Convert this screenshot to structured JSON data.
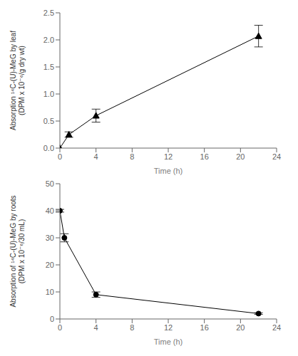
{
  "chart_data": [
    {
      "type": "line",
      "x": [
        0,
        1,
        4,
        22
      ],
      "values": [
        0,
        0.25,
        0.6,
        2.07
      ],
      "yerr": [
        0,
        0.05,
        0.12,
        0.2
      ],
      "marker": "triangle",
      "color": "#000000",
      "xlim": [
        0,
        24
      ],
      "ylim": [
        0,
        2.5
      ],
      "xticks": [
        0,
        4,
        8,
        12,
        16,
        20,
        24
      ],
      "yticks": [
        {
          "value": 0,
          "label": "0.0"
        },
        {
          "value": 0.5,
          "label": "0.5"
        },
        {
          "value": 1.0,
          "label": "1.0"
        },
        {
          "value": 1.5,
          "label": "1.5"
        },
        {
          "value": 2.0,
          "label": "2.0"
        },
        {
          "value": 2.5,
          "label": "2.5"
        }
      ],
      "xlabel": "Time (h)",
      "ylabel": "Absorption ¹⁴C-(U)-MeG by leaf\n(DPM x 10⁻⁶/g dry wt)",
      "grid": false
    },
    {
      "type": "line",
      "x": [
        0,
        0.5,
        4,
        22
      ],
      "values": [
        40,
        30,
        9,
        2
      ],
      "yerr": [
        0.5,
        1.5,
        1.0,
        0.3
      ],
      "marker": "circle",
      "color": "#000000",
      "xlim": [
        0,
        24
      ],
      "ylim": [
        0,
        50
      ],
      "xticks": [
        0,
        4,
        8,
        12,
        16,
        20,
        24
      ],
      "yticks": [
        0,
        10,
        20,
        30,
        40,
        50
      ],
      "xlabel": "Time (h)",
      "ylabel": "Absorption of ¹⁴C-(U)-MeG by roots\n(DPM x 10⁻⁶/30 mL)",
      "grid": false
    }
  ]
}
